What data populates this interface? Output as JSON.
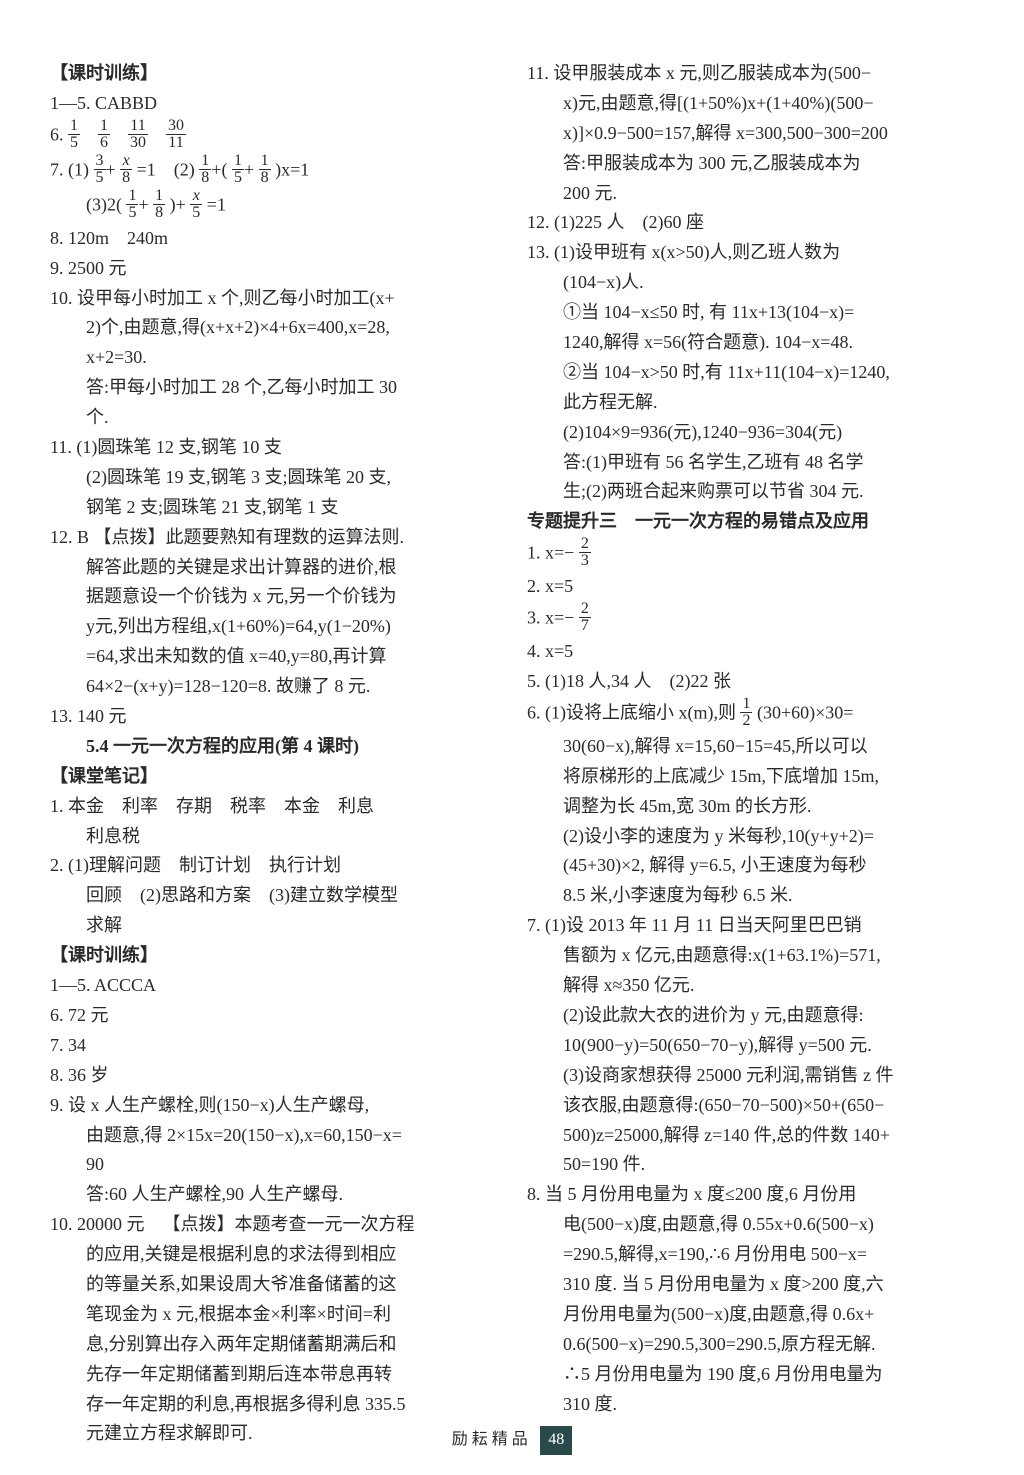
{
  "left": {
    "title1": "【课时训练】",
    "l1": "1—5. CABBD",
    "l2a": "6.",
    "l3": "7. (1)",
    "l3_eq1a": "3",
    "l3_eq1b": "5",
    "l3_eq1c": "x",
    "l3_eq1d": "8",
    "l3_mid": "=1 (2)",
    "l3_eq2a": "1",
    "l3_eq2b": "8",
    "l3_eq2c": "1",
    "l3_eq2d": "5",
    "l3_eq2e": "1",
    "l3_eq2f": "8",
    "l3_end": ")x=1",
    "l4": "(3)2(",
    "l4a": "1",
    "l4b": "5",
    "l4c": "1",
    "l4d": "8",
    "l4_mid": ")+",
    "l4e": "x",
    "l4f": "5",
    "l4_end": "=1",
    "l5": "8. 120m 240m",
    "l6": "9. 2500 元",
    "l7": "10. 设甲每小时加工 x 个,则乙每小时加工(x+",
    "l7b": "2)个,由题意,得(x+x+2)×4+6x=400,x=28,",
    "l7c": "x+2=30.",
    "l7d": "答:甲每小时加工 28 个,乙每小时加工 30",
    "l7e": "个.",
    "l8": "11. (1)圆珠笔 12 支,钢笔 10 支",
    "l8b": "(2)圆珠笔 19 支,钢笔 3 支;圆珠笔 20 支,",
    "l8c": "钢笔 2 支;圆珠笔 21 支,钢笔 1 支",
    "l9": "12. B 【点拨】此题要熟知有理数的运算法则.",
    "l9b": "解答此题的关键是求出计算器的进价,根",
    "l9c": "据题意设一个价钱为 x 元,另一个价钱为",
    "l9d": "y元,列出方程组,x(1+60%)=64,y(1−20%)",
    "l9e": "=64,求出未知数的值 x=40,y=80,再计算",
    "l9f": "64×2−(x+y)=128−120=8. 故赚了 8 元.",
    "l10": "13. 140 元",
    "subhead": "5.4 一元一次方程的应用(第 4 课时)",
    "title2": "【课堂笔记】",
    "l11": "1. 本金 利率 存期 税率 本金 利息",
    "l11b": "利息税",
    "l12": "2. (1)理解问题 制订计划 执行计划",
    "l12b": "回顾 (2)思路和方案 (3)建立数学模型",
    "l12c": "求解",
    "title3": "【课时训练】",
    "l13": "1—5. ACCCA",
    "l14": "6. 72 元",
    "l15": "7. 34",
    "l16": "8. 36 岁",
    "l17": "9. 设 x 人生产螺栓,则(150−x)人生产螺母,",
    "l17b": "由题意,得 2×15x=20(150−x),x=60,150−x=",
    "l17c": "90",
    "l17d": "答:60 人生产螺栓,90 人生产螺母.",
    "l18": "10. 20000 元 【点拨】本题考查一元一次方程",
    "l18b": "的应用,关键是根据利息的求法得到相应",
    "l18c": "的等量关系,如果设周大爷准备储蓄的这",
    "l18d": "笔现金为 x 元,根据本金×利率×时间=利",
    "l18e": "息,分别算出存入两年定期储蓄期满后和",
    "l18f": "先存一年定期储蓄到期后连本带息再转",
    "l18g": "存一年定期的利息,再根据多得利息 335.5",
    "l18h": "元建立方程求解即可."
  },
  "right": {
    "r1": "11. 设甲服装成本 x 元,则乙服装成本为(500−",
    "r1b": "x)元,由题意,得[(1+50%)x+(1+40%)(500−",
    "r1c": "x)]×0.9−500=157,解得 x=300,500−300=200",
    "r1d": "答:甲服装成本为 300 元,乙服装成本为",
    "r1e": "200 元.",
    "r2": "12. (1)225 人 (2)60 座",
    "r3": "13. (1)设甲班有 x(x>50)人,则乙班人数为",
    "r3b": "(104−x)人.",
    "r3c": "①当 104−x≤50 时, 有 11x+13(104−x)=",
    "r3d": "1240,解得 x=56(符合题意). 104−x=48.",
    "r3e": "②当 104−x>50 时,有 11x+11(104−x)=1240,",
    "r3f": "此方程无解.",
    "r3g": "(2)104×9=936(元),1240−936=304(元)",
    "r3h": "答:(1)甲班有 56 名学生,乙班有 48 名学",
    "r3i": "生;(2)两班合起来购票可以节省 304 元.",
    "subhead2": "专题提升三 一元一次方程的易错点及应用",
    "r4": "1.  x=−",
    "r4a": "2",
    "r4b": "3",
    "r5": "2.  x=5",
    "r6": "3.  x=−",
    "r6a": "2",
    "r6b": "7",
    "r7": "4.  x=5",
    "r8": "5. (1)18 人,34 人 (2)22 张",
    "r9": "6. (1)设将上底缩小 x(m),则",
    "r9a": "1",
    "r9b": "2",
    "r9_mid": "(30+60)×30=",
    "r9c": "30(60−x),解得 x=15,60−15=45,所以可以",
    "r9d": "将原梯形的上底减少 15m,下底增加 15m,",
    "r9e": "调整为长 45m,宽 30m 的长方形.",
    "r9f": "(2)设小李的速度为 y 米每秒,10(y+y+2)=",
    "r9g": "(45+30)×2, 解得 y=6.5, 小王速度为每秒",
    "r9h": "8.5 米,小李速度为每秒 6.5 米.",
    "r10": "7. (1)设 2013 年 11 月 11 日当天阿里巴巴销",
    "r10b": "售额为 x 亿元,由题意得:x(1+63.1%)=571,",
    "r10c": "解得 x≈350 亿元.",
    "r10d": "(2)设此款大衣的进价为 y 元,由题意得:",
    "r10e": "10(900−y)=50(650−70−y),解得 y=500 元.",
    "r10f": "(3)设商家想获得 25000 元利润,需销售 z 件",
    "r10g": "该衣服,由题意得:(650−70−500)×50+(650−",
    "r10h": "500)z=25000,解得 z=140 件,总的件数 140+",
    "r10i": "50=190 件.",
    "r11": "8. 当 5 月份用电量为 x 度≤200 度,6 月份用",
    "r11b": "电(500−x)度,由题意,得 0.55x+0.6(500−x)",
    "r11c": "=290.5,解得,x=190,∴6 月份用电 500−x=",
    "r11d": "310 度. 当 5 月份用电量为 x 度>200 度,六",
    "r11e": "月份用电量为(500−x)度,由题意,得 0.6x+",
    "r11f": "0.6(500−x)=290.5,300=290.5,原方程无解.",
    "r11g": "∴5 月份用电量为 190 度,6 月份用电量为",
    "r11h": "310 度."
  },
  "footer": {
    "label": "励耘精品",
    "page": "48"
  },
  "fracs6": {
    "a": "1",
    "b": "5",
    "c": "1",
    "d": "6",
    "e": "11",
    "f": "30",
    "g": "30",
    "h": "11"
  }
}
